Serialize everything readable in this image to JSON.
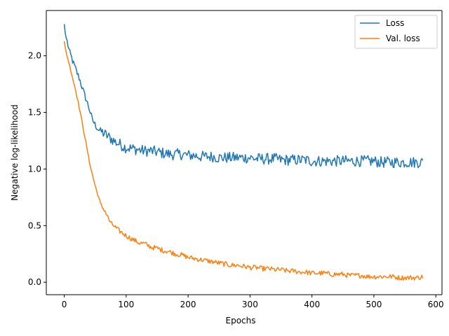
{
  "chart_data": {
    "type": "line",
    "title": "",
    "xlabel": "Epochs",
    "ylabel": "Negative log-likelihood",
    "xlim": [
      -29,
      610
    ],
    "ylim": [
      -0.11,
      2.4
    ],
    "xticks": [
      0,
      100,
      200,
      300,
      400,
      500,
      600
    ],
    "yticks": [
      0.0,
      0.5,
      1.0,
      1.5,
      2.0
    ],
    "xtick_labels": [
      "0",
      "100",
      "200",
      "300",
      "400",
      "500",
      "600"
    ],
    "ytick_labels": [
      "0.0",
      "0.5",
      "1.0",
      "1.5",
      "2.0"
    ],
    "grid": false,
    "legend_position": "top-right",
    "series": [
      {
        "name": "Loss",
        "color": "#1f77b4",
        "x": [
          0,
          2,
          5,
          8,
          12,
          15,
          20,
          25,
          30,
          35,
          40,
          45,
          50,
          55,
          60,
          65,
          70,
          75,
          80,
          85,
          90,
          95,
          100,
          110,
          120,
          130,
          140,
          150,
          160,
          170,
          180,
          190,
          200,
          210,
          220,
          230,
          240,
          250,
          260,
          270,
          280,
          290,
          300,
          310,
          320,
          330,
          340,
          350,
          360,
          370,
          380,
          390,
          400,
          410,
          420,
          430,
          440,
          450,
          460,
          470,
          480,
          490,
          500,
          510,
          520,
          530,
          540,
          550,
          560,
          570,
          580
        ],
        "values": [
          2.28,
          2.18,
          2.12,
          2.04,
          1.98,
          1.93,
          1.86,
          1.79,
          1.7,
          1.62,
          1.54,
          1.44,
          1.39,
          1.35,
          1.33,
          1.31,
          1.29,
          1.27,
          1.25,
          1.23,
          1.22,
          1.2,
          1.19,
          1.18,
          1.17,
          1.16,
          1.16,
          1.15,
          1.14,
          1.13,
          1.13,
          1.13,
          1.12,
          1.12,
          1.11,
          1.11,
          1.11,
          1.1,
          1.1,
          1.1,
          1.1,
          1.1,
          1.1,
          1.09,
          1.09,
          1.09,
          1.09,
          1.08,
          1.08,
          1.08,
          1.08,
          1.08,
          1.07,
          1.07,
          1.07,
          1.07,
          1.07,
          1.07,
          1.07,
          1.07,
          1.07,
          1.07,
          1.07,
          1.06,
          1.06,
          1.06,
          1.06,
          1.06,
          1.06,
          1.06,
          1.06
        ]
      },
      {
        "name": "Val. loss",
        "color": "#ff7f0e",
        "x": [
          0,
          2,
          5,
          8,
          12,
          15,
          20,
          25,
          30,
          35,
          40,
          45,
          50,
          55,
          60,
          65,
          70,
          75,
          80,
          85,
          90,
          95,
          100,
          110,
          120,
          130,
          140,
          150,
          160,
          170,
          180,
          190,
          200,
          210,
          220,
          230,
          240,
          250,
          260,
          270,
          280,
          290,
          300,
          310,
          320,
          330,
          340,
          350,
          360,
          370,
          380,
          390,
          400,
          410,
          420,
          430,
          440,
          450,
          460,
          470,
          480,
          490,
          500,
          510,
          520,
          530,
          540,
          550,
          560,
          570,
          580
        ],
        "values": [
          2.13,
          2.06,
          1.99,
          1.93,
          1.84,
          1.77,
          1.66,
          1.52,
          1.38,
          1.23,
          1.08,
          0.96,
          0.85,
          0.76,
          0.67,
          0.64,
          0.58,
          0.52,
          0.5,
          0.47,
          0.45,
          0.43,
          0.41,
          0.38,
          0.35,
          0.34,
          0.31,
          0.3,
          0.28,
          0.27,
          0.25,
          0.24,
          0.22,
          0.21,
          0.2,
          0.19,
          0.18,
          0.17,
          0.16,
          0.15,
          0.15,
          0.14,
          0.13,
          0.13,
          0.12,
          0.12,
          0.11,
          0.11,
          0.1,
          0.1,
          0.09,
          0.09,
          0.08,
          0.08,
          0.08,
          0.07,
          0.07,
          0.07,
          0.06,
          0.06,
          0.06,
          0.05,
          0.05,
          0.05,
          0.05,
          0.05,
          0.04,
          0.04,
          0.04,
          0.04,
          0.05
        ]
      }
    ]
  }
}
